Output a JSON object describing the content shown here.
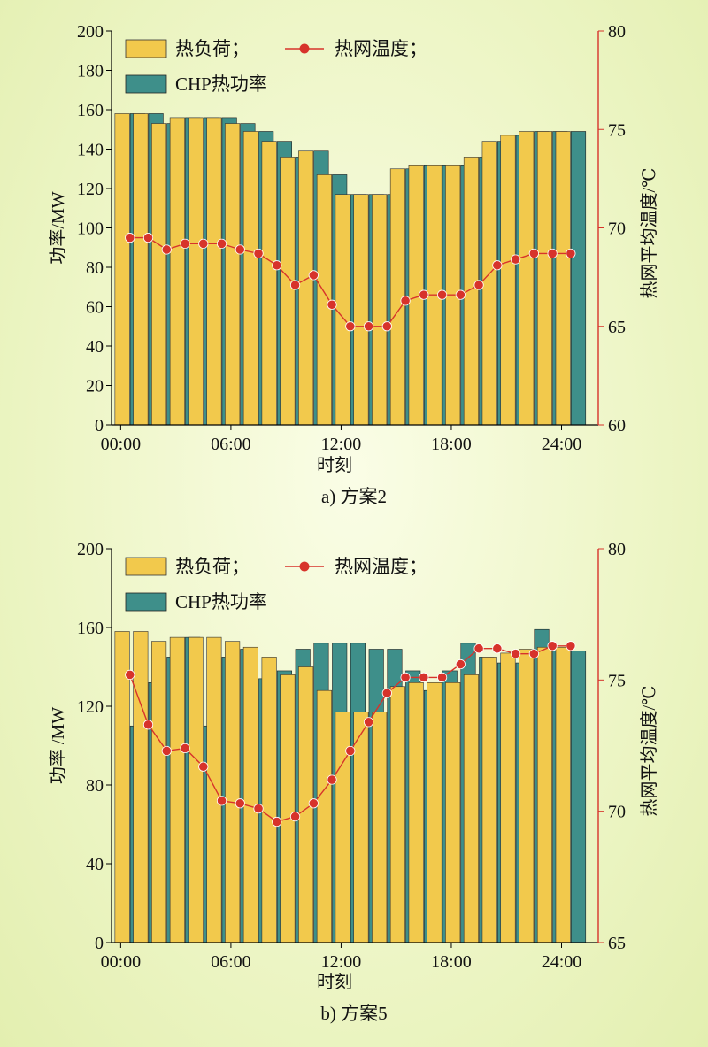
{
  "colors": {
    "heat_load": "#f2c94c",
    "chp_heat": "#3e8f8a",
    "temperature": "#d7332b",
    "axis_left": "#000000",
    "axis_right": "#d7332b"
  },
  "chart_data": [
    {
      "type": "bar",
      "caption": "a) 方案2",
      "xlabel": "时刻",
      "ylabel": "功率/MW",
      "y2label": "热网平均温度/℃",
      "xticks": [
        "00:00",
        "06:00",
        "12:00",
        "18:00",
        "24:00"
      ],
      "xlim": [
        0,
        26.5
      ],
      "ylim": [
        0,
        200
      ],
      "yticks": [
        0,
        20,
        40,
        60,
        80,
        100,
        120,
        140,
        160,
        180,
        200
      ],
      "y2lim": [
        60,
        80
      ],
      "y2ticks": [
        60,
        65,
        70,
        75,
        80
      ],
      "legend": [
        "热负荷；",
        "热网温度；",
        "CHP热功率"
      ],
      "x": [
        1,
        2,
        3,
        4,
        5,
        6,
        7,
        8,
        9,
        10,
        11,
        12,
        13,
        14,
        15,
        16,
        17,
        18,
        19,
        20,
        21,
        22,
        23,
        24,
        25
      ],
      "series": [
        {
          "name": "热负荷；",
          "type": "bar",
          "values": [
            158,
            158,
            153,
            156,
            156,
            156,
            153,
            149,
            144,
            136,
            139,
            127,
            117,
            117,
            117,
            130,
            132,
            132,
            132,
            136,
            144,
            147,
            149,
            149,
            149
          ]
        },
        {
          "name": "CHP热功率",
          "type": "bar",
          "values": [
            158,
            158,
            153,
            156,
            156,
            156,
            153,
            149,
            144,
            136,
            139,
            127,
            117,
            117,
            117,
            130,
            132,
            132,
            132,
            136,
            144,
            147,
            149,
            149,
            149
          ]
        },
        {
          "name": "热网温度；",
          "type": "line",
          "axis": "right",
          "values": [
            69.5,
            69.5,
            68.9,
            69.2,
            69.2,
            69.2,
            68.9,
            68.7,
            68.1,
            67.1,
            67.6,
            66.1,
            65.0,
            65.0,
            65.0,
            66.3,
            66.6,
            66.6,
            66.6,
            67.1,
            68.1,
            68.4,
            68.7,
            68.7,
            68.7
          ]
        }
      ]
    },
    {
      "type": "bar",
      "caption": "b) 方案5",
      "xlabel": "时刻",
      "ylabel": "功率 /MW",
      "y2label": "热网平均温度/℃",
      "xticks": [
        "00:00",
        "06:00",
        "12:00",
        "18:00",
        "24:00"
      ],
      "xlim": [
        0,
        26.5
      ],
      "ylim": [
        0,
        200
      ],
      "yticks": [
        0,
        40,
        80,
        120,
        160,
        200
      ],
      "y2lim": [
        65,
        80
      ],
      "y2ticks": [
        65,
        70,
        75,
        80
      ],
      "legend": [
        "热负荷；",
        "热网温度；",
        "CHP热功率"
      ],
      "x": [
        1,
        2,
        3,
        4,
        5,
        6,
        7,
        8,
        9,
        10,
        11,
        12,
        13,
        14,
        15,
        16,
        17,
        18,
        19,
        20,
        21,
        22,
        23,
        24,
        25
      ],
      "series": [
        {
          "name": "热负荷；",
          "type": "bar",
          "values": [
            158,
            158,
            153,
            155,
            155,
            155,
            153,
            150,
            145,
            136,
            140,
            128,
            117,
            117,
            117,
            130,
            132,
            132,
            132,
            136,
            145,
            147,
            149,
            150,
            150
          ]
        },
        {
          "name": "CHP热功率",
          "type": "bar",
          "values": [
            110,
            132,
            145,
            155,
            110,
            145,
            149,
            134,
            138,
            149,
            152,
            152,
            152,
            149,
            149,
            138,
            128,
            138,
            152,
            145,
            142,
            142,
            159,
            148,
            148
          ]
        },
        {
          "name": "热网温度；",
          "type": "line",
          "axis": "right",
          "values": [
            75.2,
            73.3,
            72.3,
            72.4,
            71.7,
            70.4,
            70.3,
            70.1,
            69.6,
            69.8,
            70.3,
            71.2,
            72.3,
            73.4,
            74.5,
            75.1,
            75.1,
            75.1,
            75.6,
            76.2,
            76.2,
            76.0,
            76.0,
            76.3,
            76.3
          ]
        }
      ]
    }
  ]
}
